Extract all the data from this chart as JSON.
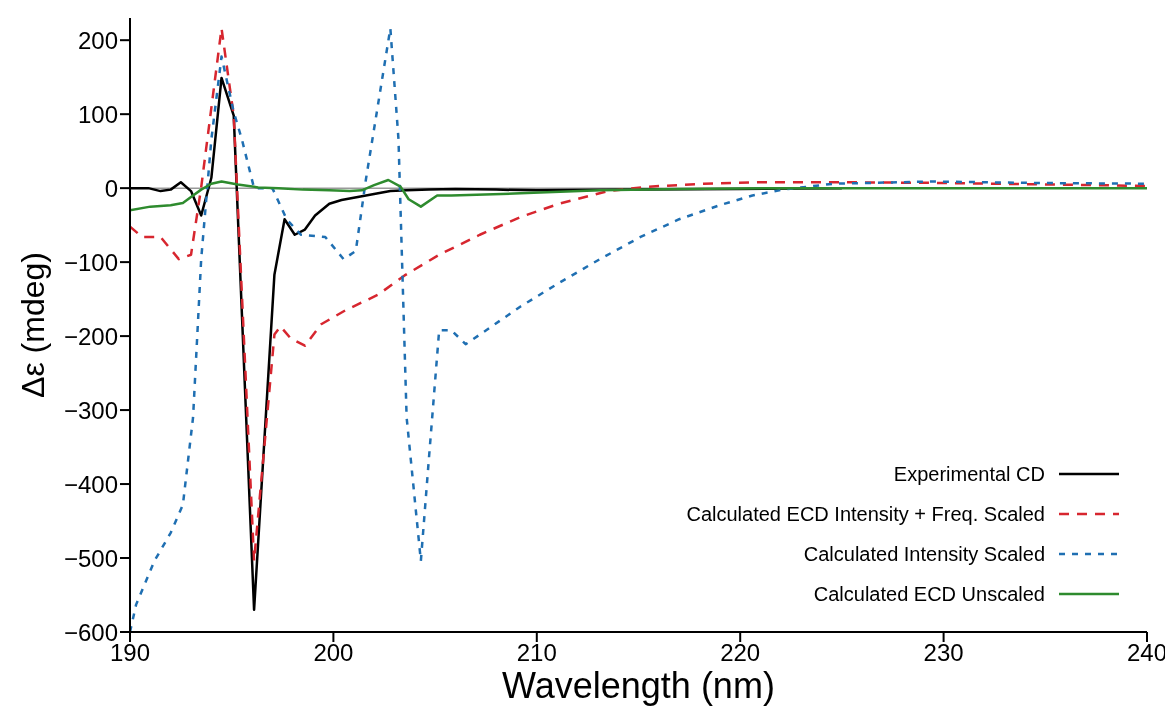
{
  "chart_data": {
    "type": "line",
    "xlabel": "Wavelength (nm)",
    "ylabel": "Δε (mdeg)",
    "xlim": [
      190,
      240
    ],
    "xticks": [
      190,
      200,
      210,
      220,
      230,
      240
    ],
    "ylim": [
      -600,
      230
    ],
    "yticks": [
      {
        "value": -600,
        "label": "−600"
      },
      {
        "value": -500,
        "label": "−500"
      },
      {
        "value": -400,
        "label": "−400"
      },
      {
        "value": -300,
        "label": "−300"
      },
      {
        "value": -200,
        "label": "−200"
      },
      {
        "value": -100,
        "label": "−100"
      },
      0,
      100,
      200
    ],
    "grid": false,
    "legend": "bottom right",
    "marker": "none",
    "ref_lines": [
      {
        "axis": "y",
        "value": 0,
        "color": "#999999"
      }
    ],
    "series": [
      {
        "name": "Experimental CD",
        "color": "#000000",
        "line_style": "solid",
        "x": [
          190,
          190.9,
          191.5,
          192,
          192.5,
          193,
          193.5,
          194,
          194.5,
          195.1,
          196.1,
          197.1,
          197.6,
          198.1,
          198.6,
          199.1,
          199.8,
          200.4,
          201.2,
          202,
          202.8,
          203.6,
          204.7,
          206,
          208,
          210,
          215,
          220,
          225
        ],
        "values": [
          0,
          0,
          -4,
          -2,
          8,
          -4,
          -37,
          14,
          149,
          98,
          -570,
          -117,
          -42,
          -63,
          -56,
          -37,
          -21,
          -16,
          -12,
          -8,
          -4,
          -3,
          -2,
          -1,
          -2,
          -3,
          -2,
          -1,
          0
        ]
      },
      {
        "name": "Calculated ECD Intensity + Freq. Scaled",
        "color": "#d7262f",
        "line_style": "dashed",
        "x": [
          190,
          190.6,
          191.5,
          192.4,
          193,
          193.5,
          194.5,
          195.1,
          196.1,
          197.1,
          197.4,
          197.9,
          198.6,
          199.4,
          200.6,
          202.2,
          203.5,
          205.2,
          207.2,
          209.2,
          211.1,
          213.5,
          215.5,
          218.2,
          221,
          225,
          230,
          235,
          240
        ],
        "values": [
          -52,
          -66,
          -66,
          -96,
          -90,
          1,
          216,
          98,
          -504,
          -198,
          -187,
          -203,
          -213,
          -184,
          -165,
          -144,
          -118,
          -90,
          -63,
          -39,
          -21,
          -4,
          2,
          6,
          8,
          8,
          7,
          5,
          3
        ]
      },
      {
        "name": "Calculated Intensity Scaled",
        "color": "#1f6fb2",
        "line_style": "dotted",
        "x": [
          190,
          190.3,
          191.2,
          192,
          192.6,
          193.1,
          193.5,
          194,
          194.5,
          195.1,
          195.5,
          196.1,
          197,
          197.7,
          198.4,
          199.6,
          200.5,
          201.1,
          201.6,
          202.8,
          203.2,
          203.6,
          204.3,
          204.7,
          205.2,
          205.8,
          206.5,
          207.2,
          209.2,
          211.1,
          213.1,
          215.1,
          217,
          219,
          220.6,
          222.1,
          224.6,
          229.5,
          234.4,
          240
        ],
        "values": [
          -600,
          -563,
          -504,
          -466,
          -428,
          -310,
          -96,
          66,
          178,
          103,
          66,
          0,
          0,
          -42,
          -63,
          -66,
          -96,
          -85,
          12,
          216,
          66,
          -310,
          -504,
          -364,
          -192,
          -192,
          -211,
          -198,
          -160,
          -128,
          -96,
          -66,
          -42,
          -23,
          -10,
          -2,
          6,
          9,
          7,
          6
        ]
      },
      {
        "name": "Calculated ECD Unscaled",
        "color": "#2e8b2e",
        "line_style": "solid",
        "x": [
          190,
          191,
          192,
          192.6,
          193,
          193.5,
          194,
          194.5,
          195.3,
          196.3,
          197.3,
          198.5,
          199.8,
          200.8,
          201.4,
          202,
          202.7,
          203.3,
          203.7,
          204.3,
          205.1,
          205.8,
          209.2,
          213.1,
          217,
          222,
          230,
          240
        ],
        "values": [
          -30,
          -25,
          -23,
          -20,
          -12,
          -2,
          6,
          9,
          5,
          1,
          0,
          -2,
          -3,
          -4,
          -3,
          4,
          11,
          2,
          -15,
          -25,
          -10,
          -10,
          -7,
          -3,
          -1,
          0,
          0,
          0
        ]
      }
    ]
  }
}
